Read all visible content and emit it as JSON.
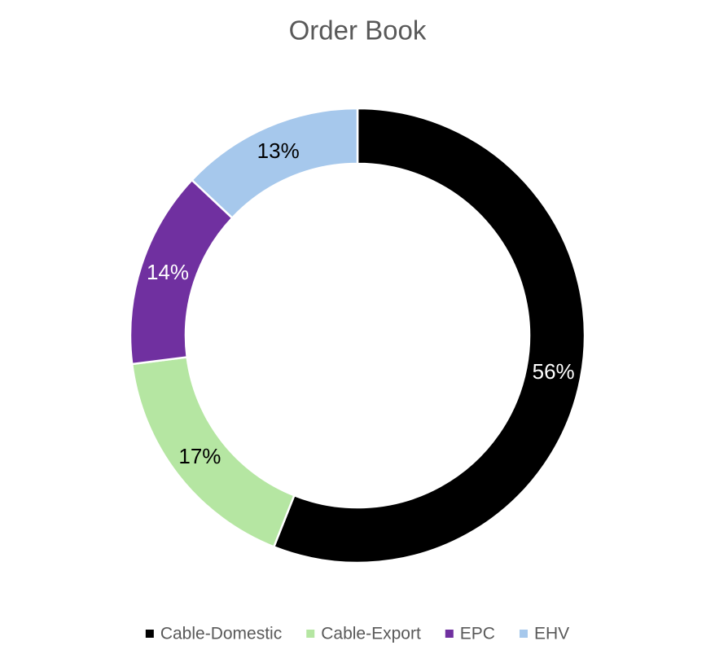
{
  "chart_data": {
    "type": "donut",
    "title": "Order Book",
    "categories": [
      "Cable-Domestic",
      "Cable-Export",
      "EPC",
      "EHV"
    ],
    "values": [
      56,
      17,
      14,
      13
    ],
    "value_labels": [
      "56%",
      "17%",
      "14%",
      "13%"
    ],
    "colors": [
      "#000000",
      "#b5e6a2",
      "#7030a0",
      "#a6c8ec"
    ],
    "legend": "bottom"
  }
}
